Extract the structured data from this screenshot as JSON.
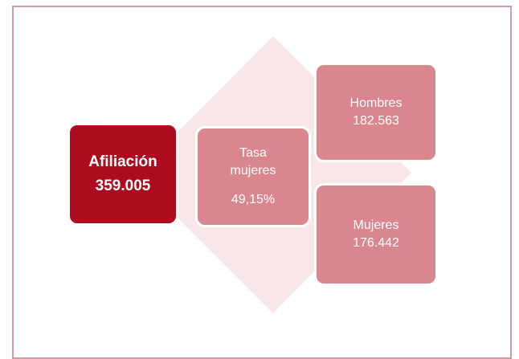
{
  "nodes": [
    {
      "label": "Afiliación",
      "value": "359.005"
    },
    {
      "label": "Tasa mujeres",
      "value": "49,15%"
    },
    {
      "label": "Hombres",
      "value": "182.563"
    },
    {
      "label": "Mujeres",
      "value": "176.442"
    }
  ]
}
